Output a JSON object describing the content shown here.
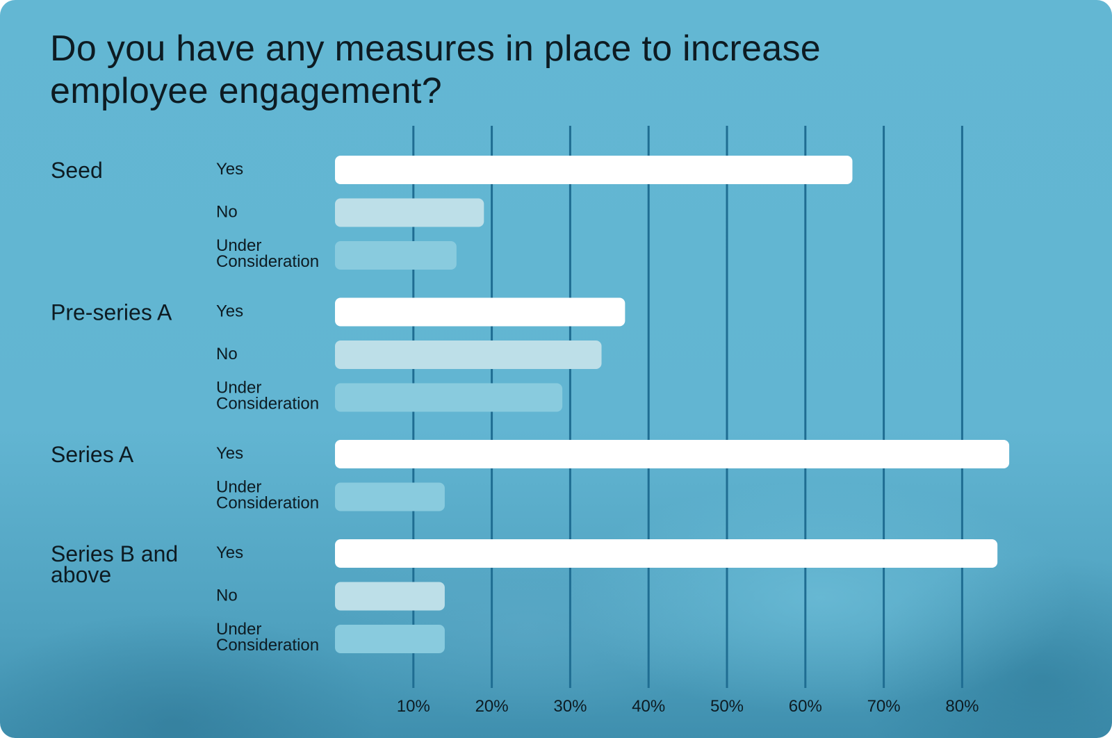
{
  "chart_data": {
    "type": "bar",
    "orientation": "horizontal",
    "title": "Do you have any measures in place to increase employee engagement?",
    "xlabel": "",
    "ylabel": "",
    "xlim": [
      0,
      85
    ],
    "x_ticks": [
      "10%",
      "20%",
      "30%",
      "40%",
      "50%",
      "60%",
      "70%",
      "80%"
    ],
    "x_tick_values": [
      10,
      20,
      30,
      40,
      50,
      60,
      70,
      80
    ],
    "grid": true,
    "groups": [
      {
        "name": "Seed",
        "bars": [
          {
            "category": "Yes",
            "value": 66
          },
          {
            "category": "No",
            "value": 19
          },
          {
            "category": "Under Consideration",
            "value": 15.5
          }
        ]
      },
      {
        "name": "Pre-series A",
        "bars": [
          {
            "category": "Yes",
            "value": 37
          },
          {
            "category": "No",
            "value": 34
          },
          {
            "category": "Under Consideration",
            "value": 29
          }
        ]
      },
      {
        "name": "Series A",
        "bars": [
          {
            "category": "Yes",
            "value": 86
          },
          {
            "category": "Under Consideration",
            "value": 14
          }
        ]
      },
      {
        "name": "Series B and above",
        "bars": [
          {
            "category": "Yes",
            "value": 84.5
          },
          {
            "category": "No",
            "value": 14
          },
          {
            "category": "Under Consideration",
            "value": 14
          }
        ]
      }
    ],
    "colors": {
      "Yes": "#ffffff",
      "No": "#bddfe8",
      "Under Consideration": "#89cbde",
      "grid": "#1f6d92",
      "text": "#0d1b22"
    }
  }
}
